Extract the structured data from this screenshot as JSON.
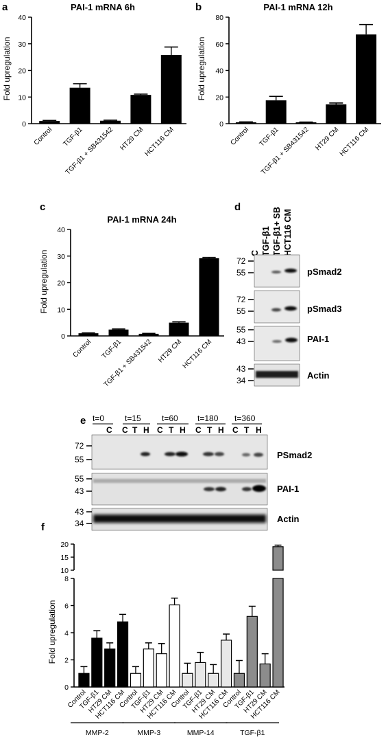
{
  "chart_data": [
    {
      "panel": "a",
      "type": "bar",
      "title": "PAI-1 mRNA 6h",
      "ylabel": "Fold upregulation",
      "ylim": [
        0,
        40
      ],
      "yticks": [
        0,
        10,
        20,
        30,
        40
      ],
      "categories": [
        "Control",
        "TGF-β1",
        "TGF-β1 + SB431542",
        "HT29 CM",
        "HCT116 CM"
      ],
      "values": [
        1.0,
        13.5,
        1.1,
        10.8,
        25.8
      ],
      "errors": [
        0.2,
        1.5,
        0.2,
        0.3,
        3.0
      ],
      "bar_color": "#000000"
    },
    {
      "panel": "b",
      "type": "bar",
      "title": "PAI-1 mRNA 12h",
      "ylabel": "Fold upregulation",
      "ylim": [
        0,
        80
      ],
      "yticks": [
        0,
        20,
        40,
        60,
        80
      ],
      "categories": [
        "Control",
        "TGF-β1",
        "TGF-β1 + SB431542",
        "HT29 CM",
        "HCT116 CM"
      ],
      "values": [
        1.0,
        17.5,
        1.0,
        14.5,
        67.0
      ],
      "errors": [
        0.3,
        3.0,
        0.2,
        1.0,
        7.5
      ],
      "bar_color": "#000000"
    },
    {
      "panel": "c",
      "type": "bar",
      "title": "PAI-1 mRNA 24h",
      "ylabel": "Fold upregulation",
      "ylim": [
        0,
        40
      ],
      "yticks": [
        0,
        10,
        20,
        30,
        40
      ],
      "categories": [
        "Control",
        "TGF-β1",
        "TGF-β1 + SB431542",
        "HT29 CM",
        "HCT116 CM"
      ],
      "values": [
        1.0,
        2.4,
        0.8,
        5.0,
        29.2
      ],
      "errors": [
        0.15,
        0.2,
        0.15,
        0.3,
        0.3
      ],
      "bar_color": "#000000"
    },
    {
      "panel": "f",
      "type": "bar",
      "ylabel": "Fold upregulation",
      "lower_ylim": [
        0,
        8
      ],
      "lower_yticks": [
        0,
        2,
        4,
        6,
        8
      ],
      "upper_ylim": [
        10,
        20
      ],
      "upper_yticks": [
        10,
        15,
        20
      ],
      "categories": [
        "Control",
        "TGF-β1",
        "HT29 CM",
        "HCT116 CM"
      ],
      "groups": [
        {
          "name": "MMP-2",
          "color": "#000000",
          "values": [
            1.0,
            3.6,
            2.8,
            4.8
          ],
          "errors": [
            0.5,
            0.55,
            0.45,
            0.55
          ]
        },
        {
          "name": "MMP-3",
          "color": "#ffffff",
          "values": [
            1.0,
            2.8,
            2.45,
            6.05
          ],
          "errors": [
            0.5,
            0.45,
            0.75,
            0.5
          ]
        },
        {
          "name": "MMP-14",
          "color": "#e8e8e8",
          "values": [
            1.0,
            1.8,
            1.0,
            3.45
          ],
          "errors": [
            0.75,
            0.75,
            0.65,
            0.45
          ]
        },
        {
          "name": "TGF-β1",
          "color": "#8c8c8c",
          "values": [
            1.0,
            5.2,
            1.7,
            19.0
          ],
          "errors": [
            0.95,
            0.75,
            0.75,
            0.6
          ]
        }
      ]
    }
  ],
  "panel_labels": {
    "a": "a",
    "b": "b",
    "c": "c",
    "d": "d",
    "e": "e",
    "f": "f"
  },
  "blot_d": {
    "lanes": [
      "C",
      "TGF-β1",
      "TGF-β1+ SB",
      "HCT116 CM"
    ],
    "rows": [
      {
        "label": "pSmad2",
        "markers": [
          "72",
          "55"
        ]
      },
      {
        "label": "pSmad3",
        "markers": [
          "72",
          "55"
        ]
      },
      {
        "label": "PAI-1",
        "markers": [
          "55",
          "43"
        ]
      },
      {
        "label": "Actin",
        "markers": [
          "43",
          "34"
        ]
      }
    ]
  },
  "blot_e": {
    "timepoints": [
      {
        "label": "t=0",
        "lanes": [
          "C"
        ]
      },
      {
        "label": "t=15",
        "lanes": [
          "C",
          "T",
          "H"
        ]
      },
      {
        "label": "t=60",
        "lanes": [
          "C",
          "T",
          "H"
        ]
      },
      {
        "label": "t=180",
        "lanes": [
          "C",
          "T",
          "H"
        ]
      },
      {
        "label": "t=360",
        "lanes": [
          "C",
          "T",
          "H"
        ]
      }
    ],
    "rows": [
      {
        "label": "PSmad2",
        "markers": [
          "72",
          "55"
        ]
      },
      {
        "label": "PAI-1",
        "markers": [
          "55",
          "43"
        ]
      },
      {
        "label": "Actin",
        "markers": [
          "43",
          "34"
        ]
      }
    ]
  }
}
